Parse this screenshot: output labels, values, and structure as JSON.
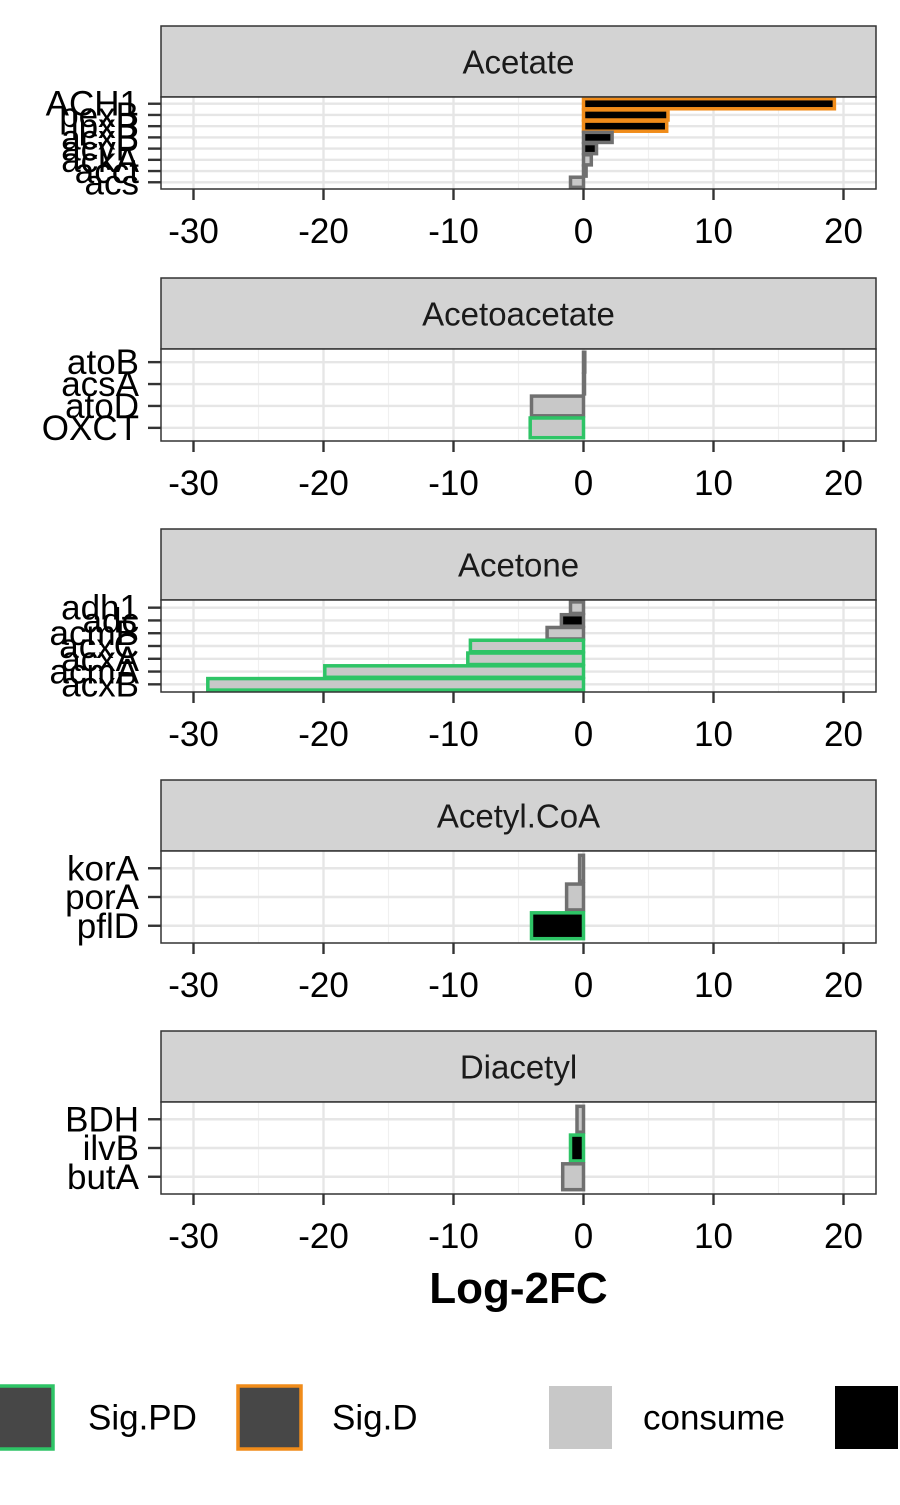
{
  "chart_data": {
    "type": "bar",
    "orientation": "horizontal",
    "facet_layout": "vertical",
    "xlabel": "Log-2FC",
    "xlim": [
      -32.5,
      22.5
    ],
    "xticks": [
      -30,
      -20,
      -10,
      0,
      10,
      20
    ],
    "xtick_labels": [
      "-30",
      "-20",
      "-10",
      "0",
      "10",
      "20"
    ],
    "grid": true,
    "legend": {
      "placement": "bottom",
      "entries": [
        {
          "label": "Sig.PD",
          "fill": "#474747",
          "border": "#2EC466"
        },
        {
          "label": "Sig.D",
          "fill": "#474747",
          "border": "#F08C1A"
        },
        {
          "label": "consume",
          "fill": "#C8C8C8",
          "border": ""
        },
        {
          "label": "",
          "fill": "#000000",
          "border": ""
        }
      ]
    },
    "colors": {
      "consume": "#C8C8C8",
      "produce": "#000000",
      "nonsig_border": "#707070",
      "sig_pd": "#2EC466",
      "sig_d": "#F08C1A",
      "strip": "#D3D3D3"
    },
    "facets": [
      {
        "title": "Acetate",
        "bars": [
          {
            "label": "ACH1",
            "value": 19.3,
            "fill": "produce",
            "sig": "D"
          },
          {
            "label": "pexB",
            "value": 6.5,
            "fill": "produce",
            "sig": "D"
          },
          {
            "label": "lpxB",
            "value": 6.4,
            "fill": "produce",
            "sig": "D"
          },
          {
            "label": "acxB",
            "value": 2.2,
            "fill": "produce",
            "sig": "none"
          },
          {
            "label": "acyP",
            "value": 1.0,
            "fill": "produce",
            "sig": "none"
          },
          {
            "label": "ackA",
            "value": 0.6,
            "fill": "consume",
            "sig": "none"
          },
          {
            "label": "acct",
            "value": 0.2,
            "fill": "consume",
            "sig": "none"
          },
          {
            "label": "acs",
            "value": -1.0,
            "fill": "consume",
            "sig": "none"
          }
        ]
      },
      {
        "title": "Acetoacetate",
        "bars": [
          {
            "label": "atoB",
            "value": 0.1,
            "fill": "consume",
            "sig": "none"
          },
          {
            "label": "acsA",
            "value": 0.0,
            "fill": "consume",
            "sig": "none"
          },
          {
            "label": "atoD",
            "value": -4.0,
            "fill": "consume",
            "sig": "none"
          },
          {
            "label": "OXCT",
            "value": -4.1,
            "fill": "consume",
            "sig": "PD"
          }
        ]
      },
      {
        "title": "Acetone",
        "bars": [
          {
            "label": "adh1",
            "value": -1.0,
            "fill": "consume",
            "sig": "none"
          },
          {
            "label": "adc",
            "value": -1.7,
            "fill": "produce",
            "sig": "none"
          },
          {
            "label": "acmB",
            "value": -2.8,
            "fill": "consume",
            "sig": "none"
          },
          {
            "label": "acxC",
            "value": -8.7,
            "fill": "consume",
            "sig": "PD"
          },
          {
            "label": "acxA",
            "value": -8.9,
            "fill": "consume",
            "sig": "PD"
          },
          {
            "label": "acmA",
            "value": -19.9,
            "fill": "consume",
            "sig": "PD"
          },
          {
            "label": "acxB",
            "value": -28.9,
            "fill": "consume",
            "sig": "PD"
          }
        ]
      },
      {
        "title": "Acetyl.CoA",
        "bars": [
          {
            "label": "korA",
            "value": -0.3,
            "fill": "consume",
            "sig": "none"
          },
          {
            "label": "porA",
            "value": -1.3,
            "fill": "consume",
            "sig": "none"
          },
          {
            "label": "pflD",
            "value": -4.0,
            "fill": "produce",
            "sig": "PD"
          }
        ]
      },
      {
        "title": "Diacetyl",
        "bars": [
          {
            "label": "BDH",
            "value": -0.5,
            "fill": "consume",
            "sig": "none"
          },
          {
            "label": "ilvB",
            "value": -1.0,
            "fill": "produce",
            "sig": "PD"
          },
          {
            "label": "butA",
            "value": -1.6,
            "fill": "consume",
            "sig": "none"
          }
        ]
      }
    ]
  }
}
